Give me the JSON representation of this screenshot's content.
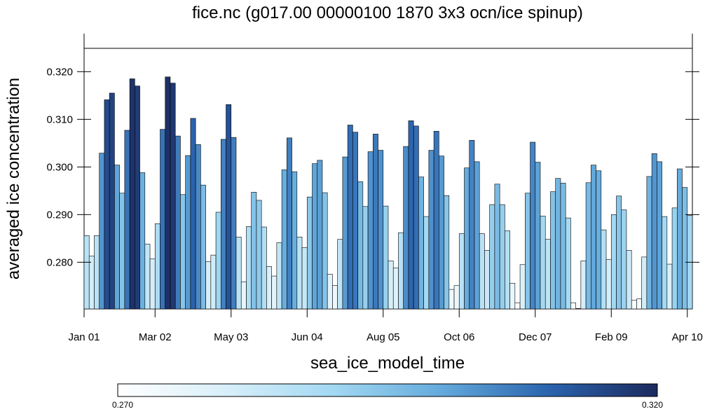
{
  "chart_data": {
    "type": "bar",
    "title": "fice.nc (g017.00 00000100 1870 3x3 ocn/ice spinup)",
    "xlabel": "sea_ice_model_time",
    "ylabel": "averaged ice concentration",
    "ylim": [
      0.2702,
      0.3249
    ],
    "yticks": [
      "0.280",
      "0.290",
      "0.300",
      "0.310",
      "0.320"
    ],
    "ytick_values": [
      0.28,
      0.29,
      0.3,
      0.31,
      0.32
    ],
    "xticks": [
      "Jan 01",
      "Mar 02",
      "May 03",
      "Jun 04",
      "Aug 05",
      "Oct 06",
      "Dec 07",
      "Feb 09",
      "Apr 10"
    ],
    "xtick_positions": [
      0,
      14,
      29,
      44,
      59,
      74,
      89,
      104,
      119
    ],
    "grid": false,
    "colorbar": {
      "min_label": "0.270",
      "max_label": "0.320",
      "min": 0.27,
      "max": 0.32
    },
    "values": [
      0.2856,
      0.2813,
      0.2856,
      0.3029,
      0.3141,
      0.3155,
      0.3004,
      0.2945,
      0.3077,
      0.3185,
      0.317,
      0.2988,
      0.2838,
      0.2807,
      0.2881,
      0.3079,
      0.3189,
      0.3176,
      0.3065,
      0.2942,
      0.3024,
      0.3102,
      0.3047,
      0.2962,
      0.2801,
      0.2815,
      0.2905,
      0.3058,
      0.3131,
      0.3062,
      0.2853,
      0.2759,
      0.2875,
      0.2947,
      0.293,
      0.2874,
      0.2791,
      0.2771,
      0.2841,
      0.2994,
      0.3061,
      0.299,
      0.2853,
      0.2831,
      0.2937,
      0.3007,
      0.3014,
      0.2946,
      0.2775,
      0.2751,
      0.2848,
      0.3021,
      0.3088,
      0.3073,
      0.2969,
      0.2917,
      0.3032,
      0.3069,
      0.3035,
      0.2918,
      0.2803,
      0.2788,
      0.2862,
      0.3043,
      0.3097,
      0.3086,
      0.2979,
      0.2896,
      0.3035,
      0.3075,
      0.3023,
      0.294,
      0.2743,
      0.2751,
      0.286,
      0.2998,
      0.3056,
      0.3011,
      0.286,
      0.2825,
      0.2921,
      0.2964,
      0.2921,
      0.2866,
      0.2756,
      0.2715,
      0.2795,
      0.2945,
      0.3052,
      0.301,
      0.2897,
      0.2848,
      0.2948,
      0.2976,
      0.2966,
      0.2893,
      0.2715,
      0.2703,
      0.2803,
      0.2967,
      0.3004,
      0.2992,
      0.2868,
      0.2806,
      0.29,
      0.2939,
      0.291,
      0.2825,
      0.272,
      0.2723,
      0.2811,
      0.298,
      0.3028,
      0.3011,
      0.2896,
      0.2796,
      0.2914,
      0.2996,
      0.2957,
      0.2898
    ]
  }
}
